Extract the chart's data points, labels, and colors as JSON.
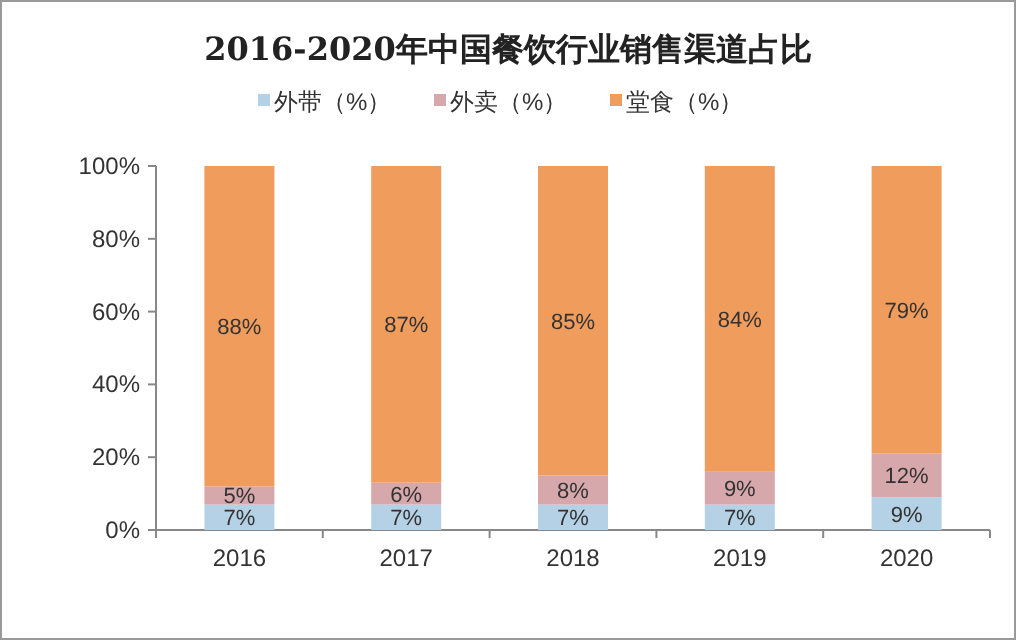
{
  "chart_data": {
    "type": "bar",
    "stacked": true,
    "title": "2016-2020年中国餐饮行业销售渠道占比",
    "legend": "top",
    "categories": [
      "2016",
      "2017",
      "2018",
      "2019",
      "2020"
    ],
    "ylim": [
      0,
      100
    ],
    "yticks": [
      {
        "value": 0,
        "label": "0%"
      },
      {
        "value": 20,
        "label": "20%"
      },
      {
        "value": 40,
        "label": "40%"
      },
      {
        "value": 60,
        "label": "60%"
      },
      {
        "value": 80,
        "label": "80%"
      },
      {
        "value": 100,
        "label": "100%"
      }
    ],
    "series": [
      {
        "name": "外带（%）",
        "color": "#b4d1e6",
        "values": [
          7,
          7,
          7,
          7,
          9
        ],
        "value_labels": [
          "7%",
          "7%",
          "7%",
          "7%",
          "9%"
        ]
      },
      {
        "name": "外卖（%）",
        "color": "#d6a7ab",
        "values": [
          5,
          6,
          8,
          9,
          12
        ],
        "value_labels": [
          "5%",
          "6%",
          "8%",
          "9%",
          "12%"
        ]
      },
      {
        "name": "堂食（%）",
        "color": "#f09c5c",
        "values": [
          88,
          87,
          85,
          84,
          79
        ],
        "value_labels": [
          "88%",
          "87%",
          "85%",
          "84%",
          "79%"
        ]
      }
    ]
  }
}
